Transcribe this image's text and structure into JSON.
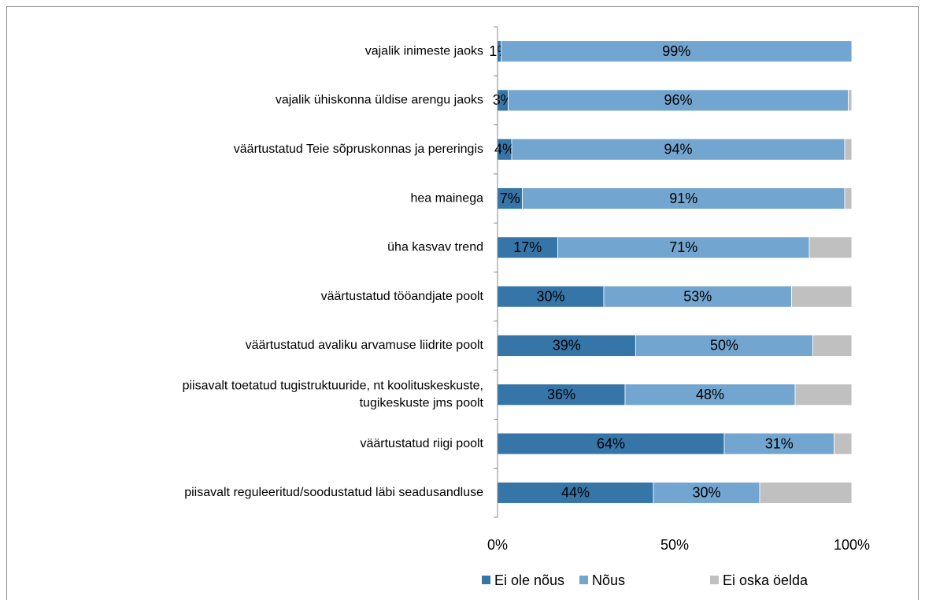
{
  "chart_data": {
    "type": "stacked-barh",
    "categories": [
      "vajalik inimeste jaoks",
      "vajalik ühiskonna üldise arengu jaoks",
      "väärtustatud Teie sõpruskonnas ja pereringis",
      "hea mainega",
      "üha kasvav trend",
      "väärtustatud tööandjate poolt",
      "väärtustatud avaliku arvamuse liidrite poolt",
      "piisavalt toetatud tugistruktuuride, nt koolituskeskuste,\ntugikeskuste jms poolt",
      "väärtustatud riigi poolt",
      "piisavalt reguleeritud/soodustatud läbi seadusandluse"
    ],
    "series": [
      {
        "name": "Ei ole nõus",
        "color": "#3575a8",
        "values": [
          1,
          3,
          4,
          7,
          17,
          30,
          39,
          36,
          64,
          44
        ],
        "value_labels": [
          "1%",
          "3%",
          "4%",
          "7%",
          "17%",
          "30%",
          "39%",
          "36%",
          "64%",
          "44%"
        ]
      },
      {
        "name": "Nõus",
        "color": "#72a5cf",
        "values": [
          99,
          96,
          94,
          91,
          71,
          53,
          50,
          48,
          31,
          30
        ],
        "value_labels": [
          "99%",
          "96%",
          "94%",
          "91%",
          "71%",
          "53%",
          "50%",
          "48%",
          "31%",
          "30%"
        ]
      },
      {
        "name": "Ei oska öelda",
        "color": "#c0c0c0",
        "values": [
          0,
          1,
          2,
          2,
          12,
          17,
          11,
          16,
          5,
          26
        ]
      }
    ],
    "xlim": [
      0,
      100
    ],
    "xticks": [
      {
        "value": 0,
        "label": "0%"
      },
      {
        "value": 50,
        "label": "50%"
      },
      {
        "value": 100,
        "label": "100%"
      }
    ],
    "legend": "bottom"
  }
}
